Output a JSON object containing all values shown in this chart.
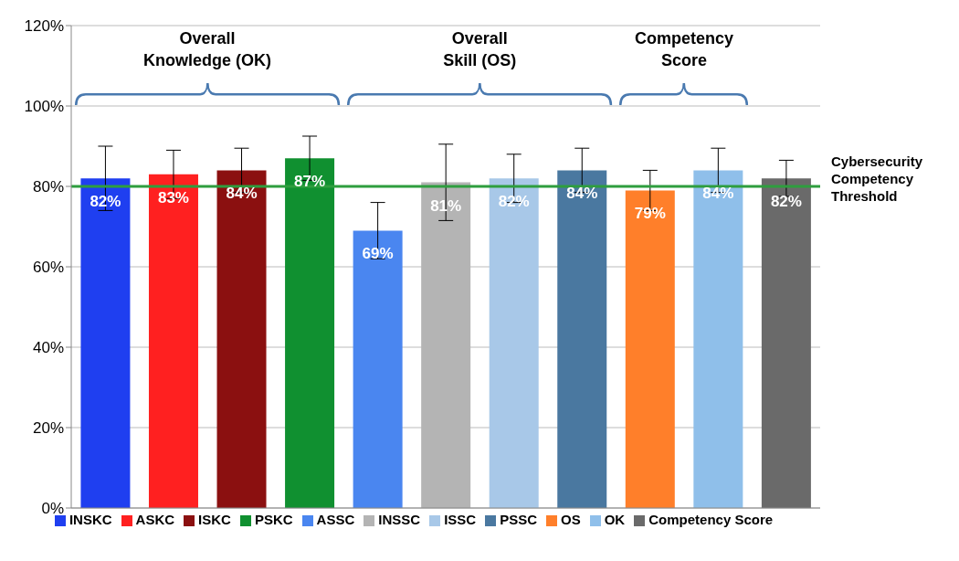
{
  "chart_data": {
    "type": "bar",
    "stacked": true,
    "categories": [
      null,
      null,
      null,
      null,
      null,
      null,
      null,
      null,
      null,
      null,
      null
    ],
    "series": [
      {
        "name": "INSKC",
        "color": "#1f3ff0",
        "values": [
          82,
          null,
          null,
          null,
          null,
          null,
          null,
          null,
          null,
          null,
          null
        ],
        "errors": [
          8,
          null,
          null,
          null,
          null,
          null,
          null,
          null,
          null,
          null,
          null
        ],
        "value_labels": [
          "82%",
          null,
          null,
          null,
          null,
          null,
          null,
          null,
          null,
          null,
          null
        ]
      },
      {
        "name": "ASKC",
        "color": "#ff2020",
        "values": [
          null,
          83,
          null,
          null,
          null,
          null,
          null,
          null,
          null,
          null,
          null
        ],
        "errors": [
          null,
          6,
          null,
          null,
          null,
          null,
          null,
          null,
          null,
          null,
          null
        ],
        "value_labels": [
          null,
          "83%",
          null,
          null,
          null,
          null,
          null,
          null,
          null,
          null,
          null
        ]
      },
      {
        "name": "ISKC",
        "color": "#8b1010",
        "values": [
          null,
          null,
          84,
          null,
          null,
          null,
          null,
          null,
          null,
          null,
          null
        ],
        "errors": [
          null,
          null,
          5.5,
          null,
          null,
          null,
          null,
          null,
          null,
          null,
          null
        ],
        "value_labels": [
          null,
          null,
          "84%",
          null,
          null,
          null,
          null,
          null,
          null,
          null,
          null
        ]
      },
      {
        "name": "PSKC",
        "color": "#109030",
        "values": [
          null,
          null,
          null,
          87,
          null,
          null,
          null,
          null,
          null,
          null,
          null
        ],
        "errors": [
          null,
          null,
          null,
          5.5,
          null,
          null,
          null,
          null,
          null,
          null,
          null
        ],
        "value_labels": [
          null,
          null,
          null,
          "87%",
          null,
          null,
          null,
          null,
          null,
          null,
          null
        ]
      },
      {
        "name": "ASSC",
        "color": "#4a86f0",
        "values": [
          null,
          null,
          null,
          null,
          69,
          null,
          null,
          null,
          null,
          null,
          null
        ],
        "errors": [
          null,
          null,
          null,
          null,
          7,
          null,
          null,
          null,
          null,
          null,
          null
        ],
        "value_labels": [
          null,
          null,
          null,
          null,
          "69%",
          null,
          null,
          null,
          null,
          null,
          null
        ]
      },
      {
        "name": "INSSC",
        "color": "#b4b4b4",
        "values": [
          null,
          null,
          null,
          null,
          null,
          81,
          null,
          null,
          null,
          null,
          null
        ],
        "errors": [
          null,
          null,
          null,
          null,
          null,
          9.5,
          null,
          null,
          null,
          null,
          null
        ],
        "value_labels": [
          null,
          null,
          null,
          null,
          null,
          "81%",
          null,
          null,
          null,
          null,
          null
        ]
      },
      {
        "name": "ISSC",
        "color": "#a8c8e8",
        "values": [
          null,
          null,
          null,
          null,
          null,
          null,
          82,
          null,
          null,
          null,
          null
        ],
        "errors": [
          null,
          null,
          null,
          null,
          null,
          null,
          6,
          null,
          null,
          null,
          null
        ],
        "value_labels": [
          null,
          null,
          null,
          null,
          null,
          null,
          "82%",
          null,
          null,
          null,
          null
        ]
      },
      {
        "name": "PSSC",
        "color": "#4a78a0",
        "values": [
          null,
          null,
          null,
          null,
          null,
          null,
          null,
          84,
          null,
          null,
          null
        ],
        "errors": [
          null,
          null,
          null,
          null,
          null,
          null,
          null,
          5.5,
          null,
          null,
          null
        ],
        "value_labels": [
          null,
          null,
          null,
          null,
          null,
          null,
          null,
          "84%",
          null,
          null,
          null
        ]
      },
      {
        "name": "OS",
        "color": "#ff7f2a",
        "values": [
          null,
          null,
          null,
          null,
          null,
          null,
          null,
          null,
          79,
          null,
          null
        ],
        "errors": [
          null,
          null,
          null,
          null,
          null,
          null,
          null,
          null,
          5,
          null,
          null
        ],
        "value_labels": [
          null,
          null,
          null,
          null,
          null,
          null,
          null,
          null,
          "79%",
          null,
          null
        ]
      },
      {
        "name": "OK",
        "color": "#8fbfea",
        "values": [
          null,
          null,
          null,
          null,
          null,
          null,
          null,
          null,
          null,
          84,
          null
        ],
        "errors": [
          null,
          null,
          null,
          null,
          null,
          null,
          null,
          null,
          null,
          5.5,
          null
        ],
        "value_labels": [
          null,
          null,
          null,
          null,
          null,
          null,
          null,
          null,
          null,
          "84%",
          null
        ]
      },
      {
        "name": "Competency Score",
        "color": "#6a6a6a",
        "values": [
          null,
          null,
          null,
          null,
          null,
          null,
          null,
          null,
          null,
          null,
          82
        ],
        "errors": [
          null,
          null,
          null,
          null,
          null,
          null,
          null,
          null,
          null,
          null,
          4.5
        ],
        "value_labels": [
          null,
          null,
          null,
          null,
          null,
          null,
          null,
          null,
          null,
          null,
          "82%"
        ]
      }
    ],
    "ylim": [
      0,
      120
    ],
    "yticks": [
      {
        "value": 0,
        "label": "0%"
      },
      {
        "value": 20,
        "label": "20%"
      },
      {
        "value": 40,
        "label": "40%"
      },
      {
        "value": 60,
        "label": "60%"
      },
      {
        "value": 80,
        "label": "80%"
      },
      {
        "value": 100,
        "label": "100%"
      },
      {
        "value": 120,
        "label": "120%"
      }
    ],
    "grid": "y",
    "legend": "bottom",
    "tick_labels": "y",
    "ref_lines": [
      {
        "axis": "y",
        "value": 80,
        "label": "Cybersecurity Competency Threshold",
        "color": "#2e9e3e"
      }
    ],
    "annotations": [
      "Overall Knowledge (OK)",
      "Overall Skill (OS)",
      "Competency Score"
    ]
  }
}
